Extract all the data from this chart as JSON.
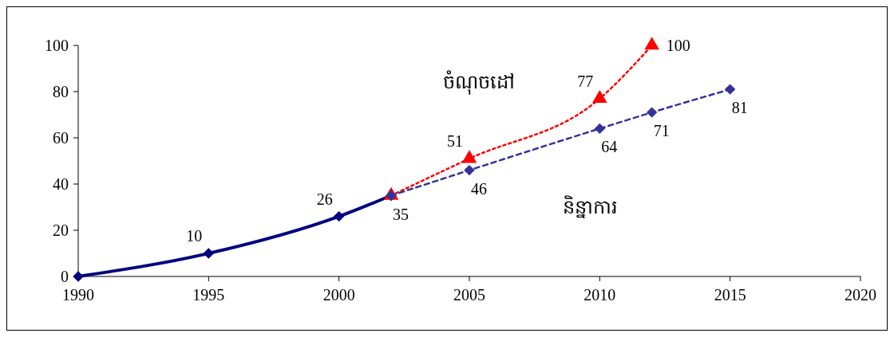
{
  "chart_data": {
    "type": "line",
    "xlim": [
      1990,
      2020
    ],
    "xticks": [
      1990,
      1995,
      2000,
      2005,
      2010,
      2015,
      2020
    ],
    "ylim": [
      0,
      100
    ],
    "yticks": [
      0,
      20,
      40,
      60,
      80,
      100
    ],
    "grid": false,
    "series": [
      {
        "color": "#000080",
        "x": [
          1990,
          1995,
          2000,
          2002
        ],
        "values": [
          0,
          10,
          26,
          35
        ],
        "value_labels": [
          null,
          "10",
          "26",
          null
        ],
        "marker": "diamond",
        "line_style": "solid"
      },
      {
        "name": "ចំណុចដៅ",
        "color": "#ff0000",
        "x": [
          2002,
          2005,
          2010,
          2012
        ],
        "values": [
          35,
          51,
          77,
          100
        ],
        "value_labels": [
          null,
          "51",
          "77",
          "100"
        ],
        "marker": "triangle",
        "line_style": "dotted"
      },
      {
        "name": "និន្នាការ",
        "color": "#333399",
        "x": [
          2002,
          2005,
          2010,
          2012,
          2015
        ],
        "values": [
          35,
          46,
          64,
          71,
          81
        ],
        "value_labels": [
          "35",
          "46",
          "64",
          "71",
          "81"
        ],
        "marker": "diamond",
        "line_style": "dashed"
      }
    ]
  }
}
